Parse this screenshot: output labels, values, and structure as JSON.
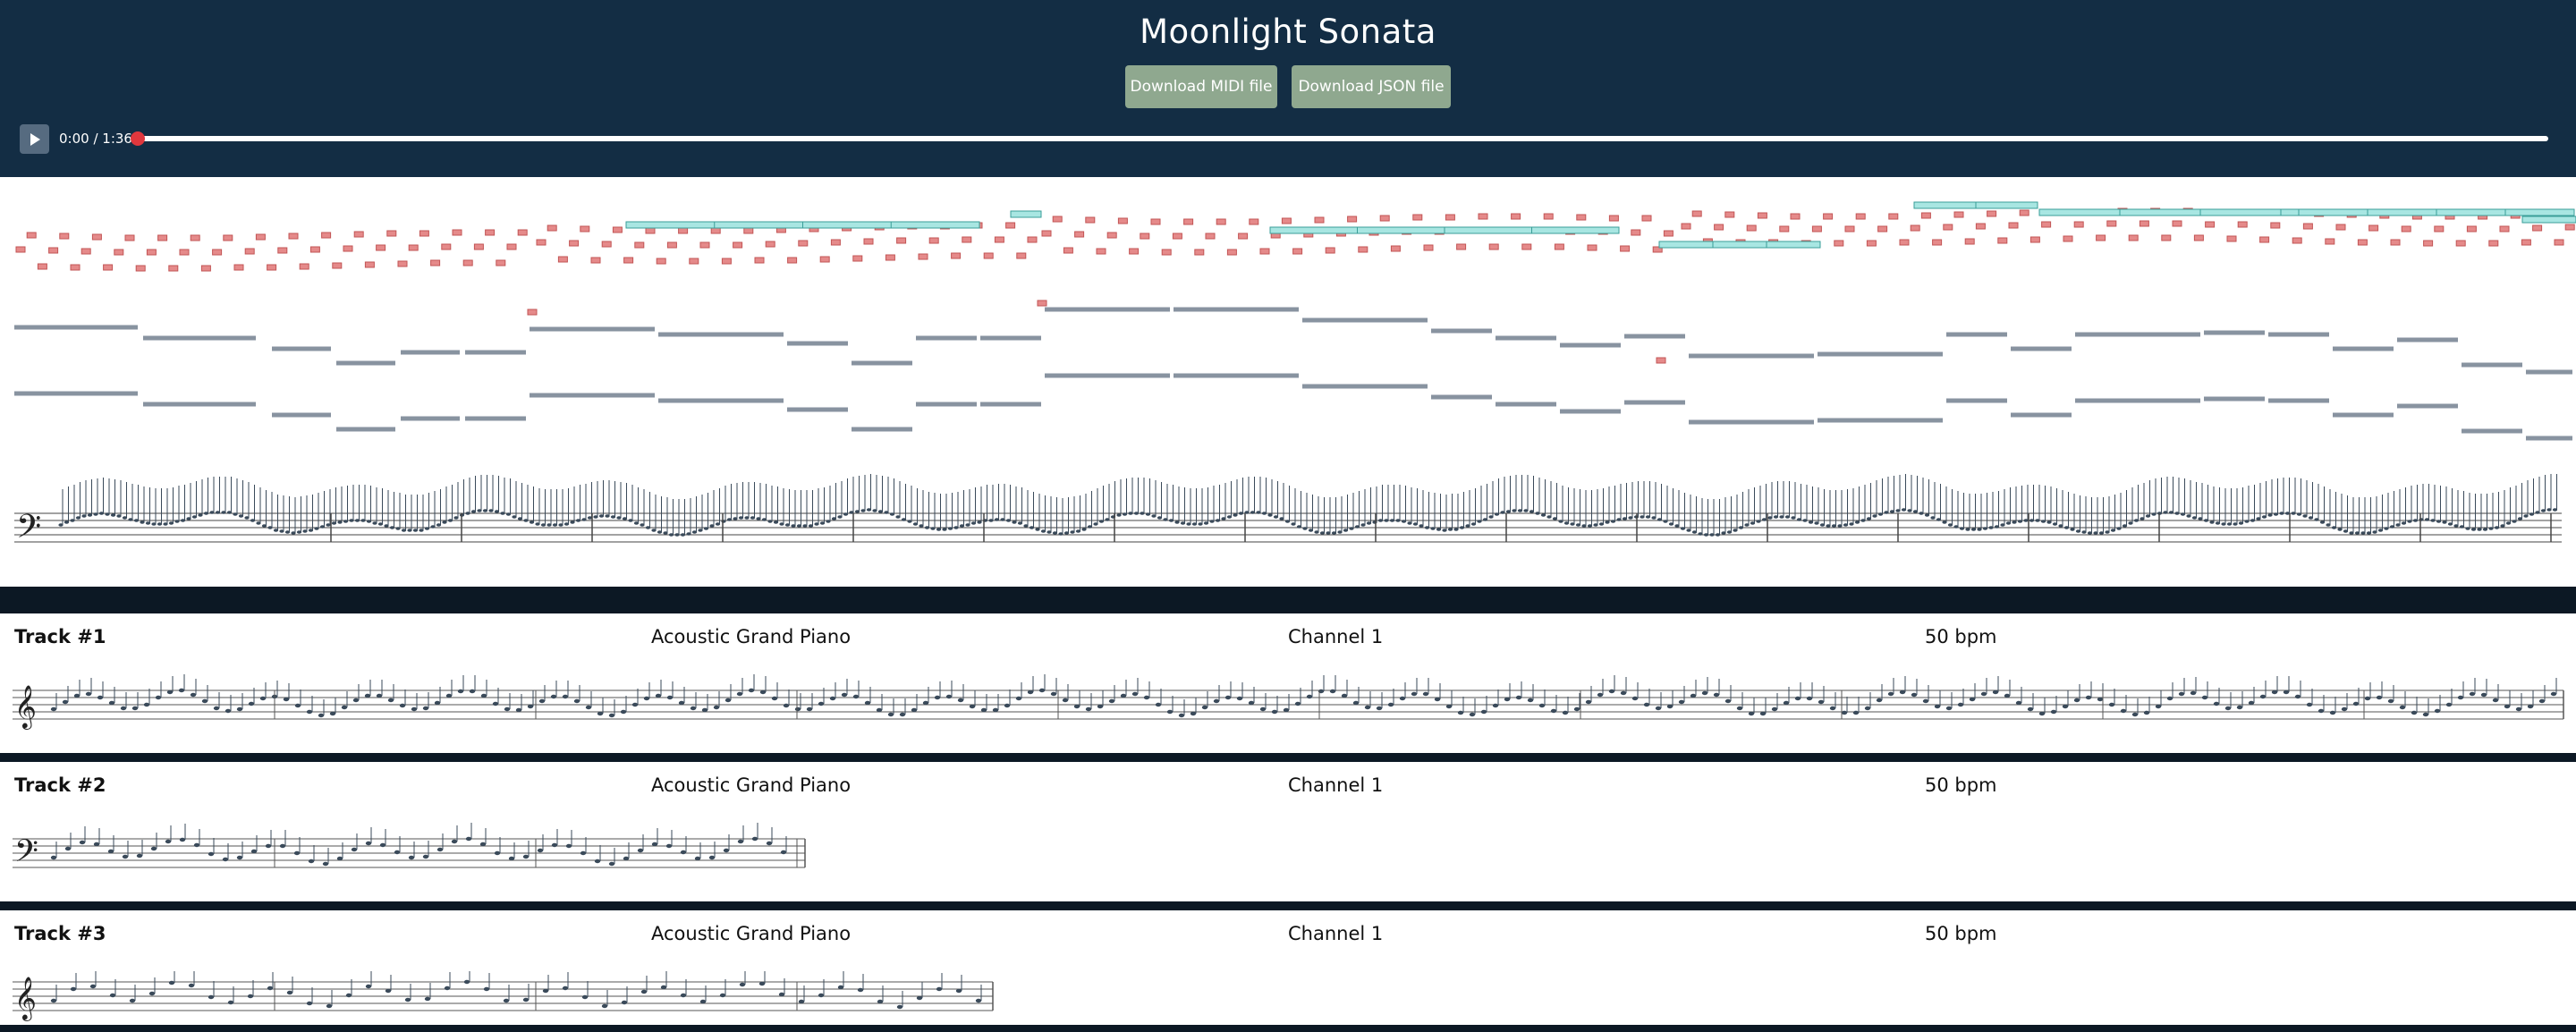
{
  "header": {
    "title": "Moonlight Sonata",
    "download_midi_label": "Download MIDI file",
    "download_json_label": "Download JSON file"
  },
  "player": {
    "time_display": "0:00 / 1:36",
    "progress": 0
  },
  "colors": {
    "header_bg": "#132d44",
    "button_bg": "#8fa88f",
    "note_red": "#e58a8a",
    "note_cyan": "#a8e6e2",
    "note_gray": "#8893a0",
    "seek_knob": "#e0373d"
  },
  "tracks": [
    {
      "name": "Track #1",
      "instrument": "Acoustic Grand Piano",
      "channel": "Channel 1",
      "tempo": "50 bpm"
    },
    {
      "name": "Track #2",
      "instrument": "Acoustic Grand Piano",
      "channel": "Channel 1",
      "tempo": "50 bpm"
    },
    {
      "name": "Track #3",
      "instrument": "Acoustic Grand Piano",
      "channel": "Channel 1",
      "tempo": "50 bpm"
    }
  ],
  "icons": {
    "play": "play-icon",
    "bass_clef": "bass-clef-icon",
    "treble_clef": "treble-clef-icon"
  }
}
